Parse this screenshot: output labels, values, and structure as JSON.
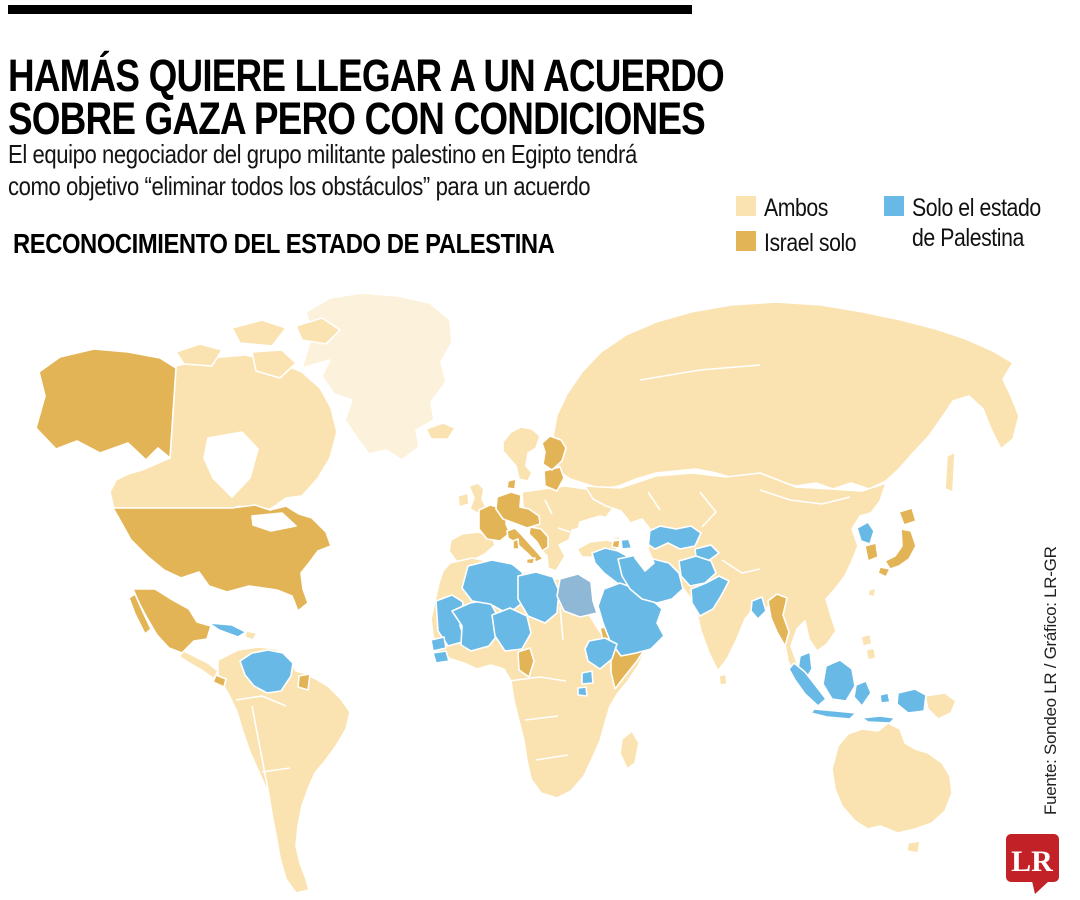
{
  "header": {
    "title_line1": "HAMÁS QUIERE LLEGAR A UN ACUERDO",
    "title_line2": "SOBRE GAZA PERO CON CONDICIONES",
    "subtitle_line1": "El equipo negociador del grupo militante palestino en Egipto tendrá",
    "subtitle_line2": "como objetivo “eliminar todos los obstáculos” para un acuerdo",
    "section_title": "RECONOCIMIENTO DEL ESTADO DE PALESTINA",
    "top_bar_color": "#000000"
  },
  "legend": {
    "items": [
      {
        "id": "ambos",
        "label": "Ambos"
      },
      {
        "id": "israel_solo",
        "label": "Israel solo"
      },
      {
        "id": "solo_palestina",
        "label": "Solo el estado de Palestina",
        "label_line1": "Solo el estado",
        "label_line2": "de Palestina"
      }
    ]
  },
  "map": {
    "colors": {
      "ambos": "#FAE3B1",
      "israel_solo": "#E3B456",
      "solo_palestina": "#69B9E6",
      "solo_palestina_muted": "#8FB7D6",
      "no_data": "#FCF2DC",
      "sea": "#FFFFFF"
    },
    "regions": {
      "greenland": "no_data",
      "novaya-zemlya": "no_data",
      "canada": "ambos",
      "arctic-island-1": "ambos",
      "arctic-island-2": "ambos",
      "arctic-island-3": "ambos",
      "arctic-island-4": "ambos",
      "central-america": "ambos",
      "hispaniola": "ambos",
      "south-america": "ambos",
      "iceland": "ambos",
      "united-kingdom": "ambos",
      "ireland": "ambos",
      "scandinavia": "ambos",
      "iberia": "ambos",
      "eastern-europe": "ambos",
      "turkey": "ambos",
      "georgia": "ambos",
      "russia": "ambos",
      "sakhalin": "ambos",
      "asia-mainland": "ambos",
      "madagascar": "ambos",
      "africa-subsaharan": "ambos",
      "papua-new-guinea": "ambos",
      "australia": "ambos",
      "tasmania": "ambos",
      "philippines-1": "ambos",
      "philippines-2": "ambos",
      "taiwan": "ambos",
      "sri-lanka": "ambos",
      "alaska": "israel_solo",
      "united-states": "israel_solo",
      "mexico": "israel_solo",
      "baja-california": "israel_solo",
      "panama": "israel_solo",
      "suriname": "israel_solo",
      "france": "israel_solo",
      "central-europe": "israel_solo",
      "italy": "israel_solo",
      "sardinia": "israel_solo",
      "sicily": "israel_solo",
      "western-balkans": "israel_solo",
      "denmark": "israel_solo",
      "baltic-states": "israel_solo",
      "finland": "israel_solo",
      "armenia": "israel_solo",
      "cameroon": "israel_solo",
      "eritrea": "israel_solo",
      "somalia": "israel_solo",
      "myanmar": "israel_solo",
      "south-korea": "israel_solo",
      "japan-hokkaido": "israel_solo",
      "japan-honshu": "israel_solo",
      "japan-kyushu": "israel_solo",
      "cuba": "solo_palestina",
      "venezuela": "solo_palestina",
      "mauritania": "solo_palestina",
      "mali": "solo_palestina",
      "senegal": "solo_palestina",
      "guinea": "solo_palestina",
      "algeria": "solo_palestina",
      "libya": "solo_palestina",
      "niger": "solo_palestina",
      "syria-iraq-jordan": "solo_palestina",
      "arabian-peninsula": "solo_palestina",
      "iran": "solo_palestina",
      "uzbekistan-turkmenistan": "solo_palestina",
      "kyrgyzstan-tajikistan": "solo_palestina",
      "afghanistan": "solo_palestina",
      "pakistan": "solo_palestina",
      "azerbaijan": "solo_palestina",
      "bangladesh": "solo_palestina",
      "ethiopia": "solo_palestina",
      "uganda": "solo_palestina",
      "rwanda-burundi": "solo_palestina",
      "north-korea": "solo_palestina",
      "malaysia": "solo_palestina",
      "sumatra": "solo_palestina",
      "borneo": "solo_palestina",
      "java": "solo_palestina",
      "sulawesi": "solo_palestina",
      "west-papua": "solo_palestina",
      "moluccas": "solo_palestina",
      "lesser-sunda": "solo_palestina",
      "egypt": "solo_palestina_muted"
    }
  },
  "source": {
    "credit": "Fuente: Sondeo LR / Gráfico: LR-GR"
  },
  "logo": {
    "text": "LR",
    "background": "#C32128",
    "text_color": "#FFFFFF"
  }
}
